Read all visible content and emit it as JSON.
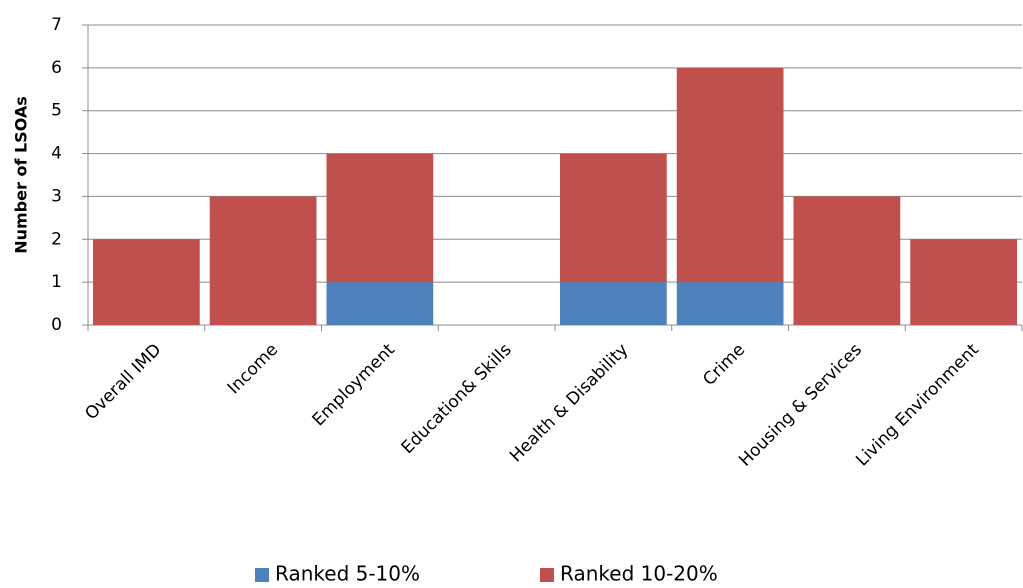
{
  "chart_data": {
    "type": "stacked_bar",
    "y_label": "Number of LSOAs",
    "categories": [
      "Overall IMD",
      "Income",
      "Employment",
      "Education& Skills",
      "Health & Disability",
      "Crime",
      "Housing & Services",
      "Living Environment"
    ],
    "series": [
      {
        "name": "Ranked 5-10%",
        "color": "#4f81bd",
        "values": [
          0,
          0,
          1,
          0,
          1,
          1,
          0,
          0
        ]
      },
      {
        "name": "Ranked 10-20%",
        "color": "#c0504d",
        "values": [
          2,
          3,
          3,
          0,
          3,
          5,
          3,
          2
        ]
      }
    ],
    "ylim": [
      0,
      7
    ],
    "yticks": [
      0,
      1,
      2,
      3,
      4,
      5,
      6,
      7
    ],
    "grid": true,
    "legend": "bottom"
  }
}
